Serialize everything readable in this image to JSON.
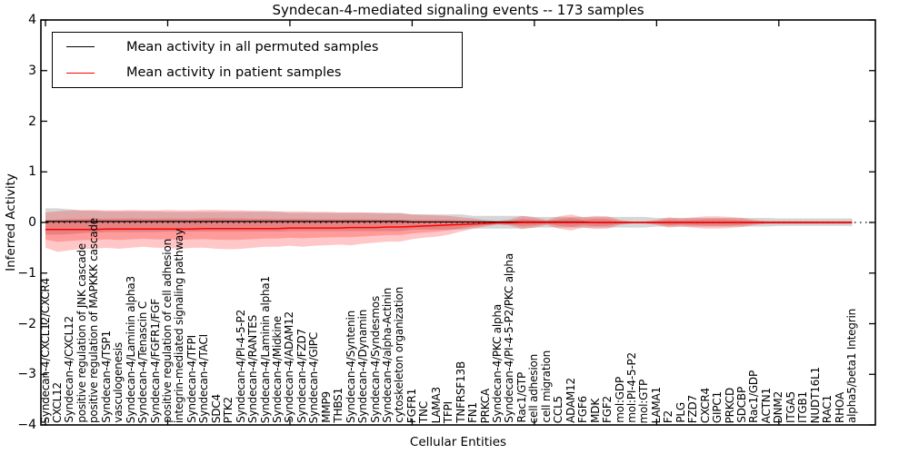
{
  "chart_data": {
    "type": "line",
    "title": "Syndecan-4-mediated signaling events -- 173 samples",
    "xlabel": "Cellular Entities",
    "ylabel": "Inferred Activity",
    "ylim": [
      -4,
      4
    ],
    "yticks": [
      4,
      3,
      2,
      1,
      0,
      -1,
      -2,
      -3,
      -4
    ],
    "ytick_labels": [
      "4",
      "3",
      "2",
      "1",
      "0",
      "−1",
      "−2",
      "−3",
      "−4"
    ],
    "xtick_major_indices": [
      0,
      10,
      20,
      30,
      40,
      50,
      60
    ],
    "grid": false,
    "legend_position": "upper left",
    "legend": [
      {
        "label": "Mean activity in all permuted samples",
        "color": "#000000"
      },
      {
        "label": "Mean activity in patient samples",
        "color": "#ff0000"
      }
    ],
    "colors": {
      "patient_line": "#ff0000",
      "permuted_line": "#000000",
      "patient_band": "rgba(255,0,0,0.22)",
      "permuted_band": "rgba(120,120,120,0.30)",
      "zero_line": "#000000"
    },
    "categories": [
      "Syndecan-4/CXCL12/CXCR4",
      "CXCL12",
      "Syndecan-4/CXCL12",
      "positive regulation of JNK cascade",
      "positive regulation of MAPKKK cascade",
      "Syndecan-4/TSP1",
      "vasculogenesis",
      "Syndecan-4/Laminin alpha3",
      "Syndecan-4/Tenascin C",
      "Syndecan-4/FGFR1/FGF",
      "positive regulation of cell adhesion",
      "integrin-mediated signaling pathway",
      "Syndecan-4/TFPI",
      "Syndecan-4/TACI",
      "SDC4",
      "PTK2",
      "Syndecan-4/PI-4-5-P2",
      "Syndecan-4/RANTES",
      "Syndecan-4/Laminin alpha1",
      "Syndecan-4/Midkine",
      "Syndecan-4/ADAM12",
      "Syndecan-4/FZD7",
      "Syndecan-4/GIPC",
      "MMP9",
      "THBS1",
      "Syndecan-4/Syntenin",
      "Syndecan-4/Dynamin",
      "Syndecan-4/Syndesmos",
      "Syndecan-4/alpha-Actinin",
      "cytoskeleton organization",
      "FGFR1",
      "TNC",
      "LAMA3",
      "TFPI",
      "TNFRSF13B",
      "FN1",
      "PRKCA",
      "Syndecan-4/PKC alpha",
      "Syndecan-4/PI-4-5-P2/PKC alpha",
      "Rac1/GTP",
      "cell adhesion",
      "cell migration",
      "CCL5",
      "ADAM12",
      "FGF6",
      "MDK",
      "FGF2",
      "mol:GDP",
      "mol:PI-4-5-P2",
      "mol:GTP",
      "LAMA1",
      "F2",
      "PLG",
      "FZD7",
      "CXCR4",
      "GIPC1",
      "PRKCD",
      "SDCBP",
      "Rac1/GDP",
      "ACTN1",
      "DNM2",
      "ITGA5",
      "ITGB1",
      "NUDT16L1",
      "RAC1",
      "RHOA",
      "alpha5/beta1 Integrin"
    ],
    "series": [
      {
        "name": "Mean activity in all permuted samples",
        "values": [
          0.02,
          0.02,
          0.02,
          0.02,
          0.02,
          0.02,
          0.02,
          0.02,
          0.02,
          0.02,
          0.02,
          0.02,
          0.02,
          0.02,
          0.02,
          0.02,
          0.02,
          0.02,
          0.02,
          0.02,
          0.02,
          0.02,
          0.02,
          0.02,
          0.02,
          0.02,
          0.02,
          0.02,
          0.02,
          0.02,
          0.01,
          0.01,
          0.01,
          0.01,
          0.01,
          0.01,
          0.01,
          0.01,
          0.01,
          0.01,
          0.01,
          0.01,
          0.01,
          0.01,
          0.01,
          0.0,
          0.0,
          0.0,
          0.0,
          0.0,
          0.0,
          0.0,
          0.0,
          0.0,
          0.0,
          0.0,
          0.0,
          0.0,
          0.0,
          0.0,
          0.0,
          0.0,
          0.0,
          0.0,
          0.0,
          0.0,
          0.0
        ]
      },
      {
        "name": "Mean activity in patient samples",
        "values": [
          -0.14,
          -0.14,
          -0.14,
          -0.14,
          -0.14,
          -0.13,
          -0.13,
          -0.13,
          -0.13,
          -0.13,
          -0.13,
          -0.13,
          -0.13,
          -0.12,
          -0.12,
          -0.12,
          -0.12,
          -0.12,
          -0.12,
          -0.12,
          -0.11,
          -0.11,
          -0.11,
          -0.11,
          -0.11,
          -0.1,
          -0.1,
          -0.1,
          -0.09,
          -0.09,
          -0.08,
          -0.07,
          -0.06,
          -0.05,
          -0.04,
          -0.03,
          -0.02,
          -0.01,
          -0.01,
          0.0,
          0.0,
          0.0,
          0.0,
          0.0,
          0.0,
          0.0,
          0.0,
          0.0,
          0.0,
          0.0,
          0.0,
          0.0,
          0.0,
          0.0,
          0.0,
          0.0,
          0.0,
          0.0,
          0.0,
          0.0,
          0.0,
          0.0,
          0.0,
          0.0,
          0.0,
          0.0,
          0.0
        ]
      }
    ],
    "bands": [
      {
        "name": "permuted-std-band",
        "upper": [
          0.28,
          0.28,
          0.26,
          0.24,
          0.23,
          0.22,
          0.22,
          0.22,
          0.22,
          0.22,
          0.21,
          0.21,
          0.21,
          0.21,
          0.21,
          0.21,
          0.21,
          0.21,
          0.21,
          0.21,
          0.19,
          0.19,
          0.19,
          0.19,
          0.19,
          0.19,
          0.19,
          0.19,
          0.19,
          0.19,
          0.16,
          0.16,
          0.16,
          0.16,
          0.16,
          0.13,
          0.13,
          0.13,
          0.13,
          0.13,
          0.11,
          0.11,
          0.11,
          0.11,
          0.11,
          0.11,
          0.11,
          0.11,
          0.11,
          0.11,
          0.09,
          0.09,
          0.09,
          0.09,
          0.09,
          0.09,
          0.09,
          0.09,
          0.09,
          0.09,
          0.08,
          0.08,
          0.08,
          0.08,
          0.08,
          0.08,
          0.08
        ],
        "lower": [
          -0.24,
          -0.24,
          -0.23,
          -0.21,
          -0.2,
          -0.19,
          -0.19,
          -0.19,
          -0.19,
          -0.19,
          -0.18,
          -0.18,
          -0.18,
          -0.18,
          -0.18,
          -0.18,
          -0.18,
          -0.18,
          -0.18,
          -0.18,
          -0.17,
          -0.17,
          -0.17,
          -0.17,
          -0.17,
          -0.17,
          -0.17,
          -0.17,
          -0.17,
          -0.17,
          -0.14,
          -0.14,
          -0.14,
          -0.14,
          -0.14,
          -0.12,
          -0.12,
          -0.12,
          -0.12,
          -0.12,
          -0.1,
          -0.1,
          -0.1,
          -0.1,
          -0.1,
          -0.1,
          -0.1,
          -0.1,
          -0.1,
          -0.1,
          -0.08,
          -0.08,
          -0.08,
          -0.08,
          -0.08,
          -0.08,
          -0.08,
          -0.08,
          -0.08,
          -0.08,
          -0.07,
          -0.07,
          -0.07,
          -0.07,
          -0.07,
          -0.07,
          -0.07
        ]
      },
      {
        "name": "patient-std-band",
        "upper": [
          0.2,
          0.22,
          0.24,
          0.24,
          0.25,
          0.24,
          0.24,
          0.25,
          0.24,
          0.24,
          0.25,
          0.24,
          0.24,
          0.25,
          0.25,
          0.24,
          0.24,
          0.23,
          0.23,
          0.22,
          0.22,
          0.22,
          0.21,
          0.21,
          0.2,
          0.2,
          0.2,
          0.19,
          0.18,
          0.18,
          0.16,
          0.15,
          0.14,
          0.13,
          0.1,
          0.08,
          0.05,
          0.03,
          0.06,
          0.13,
          0.1,
          0.05,
          0.12,
          0.16,
          0.1,
          0.13,
          0.12,
          0.05,
          0.02,
          0.02,
          0.05,
          0.1,
          0.08,
          0.1,
          0.12,
          0.12,
          0.11,
          0.09,
          0.05,
          0.03,
          0.03,
          0.03,
          0.03,
          0.03,
          0.03,
          0.03,
          0.03
        ],
        "lower": [
          -0.5,
          -0.58,
          -0.55,
          -0.52,
          -0.52,
          -0.5,
          -0.52,
          -0.5,
          -0.48,
          -0.5,
          -0.5,
          -0.52,
          -0.5,
          -0.5,
          -0.52,
          -0.53,
          -0.52,
          -0.5,
          -0.48,
          -0.48,
          -0.46,
          -0.48,
          -0.46,
          -0.45,
          -0.44,
          -0.45,
          -0.42,
          -0.4,
          -0.38,
          -0.38,
          -0.33,
          -0.3,
          -0.28,
          -0.24,
          -0.18,
          -0.12,
          -0.08,
          -0.04,
          -0.06,
          -0.13,
          -0.1,
          -0.05,
          -0.12,
          -0.16,
          -0.1,
          -0.13,
          -0.12,
          -0.05,
          -0.02,
          -0.02,
          -0.05,
          -0.1,
          -0.08,
          -0.1,
          -0.12,
          -0.12,
          -0.11,
          -0.09,
          -0.05,
          -0.03,
          -0.03,
          -0.03,
          -0.03,
          -0.03,
          -0.03,
          -0.03,
          -0.03
        ]
      }
    ],
    "zero_line": 0
  }
}
